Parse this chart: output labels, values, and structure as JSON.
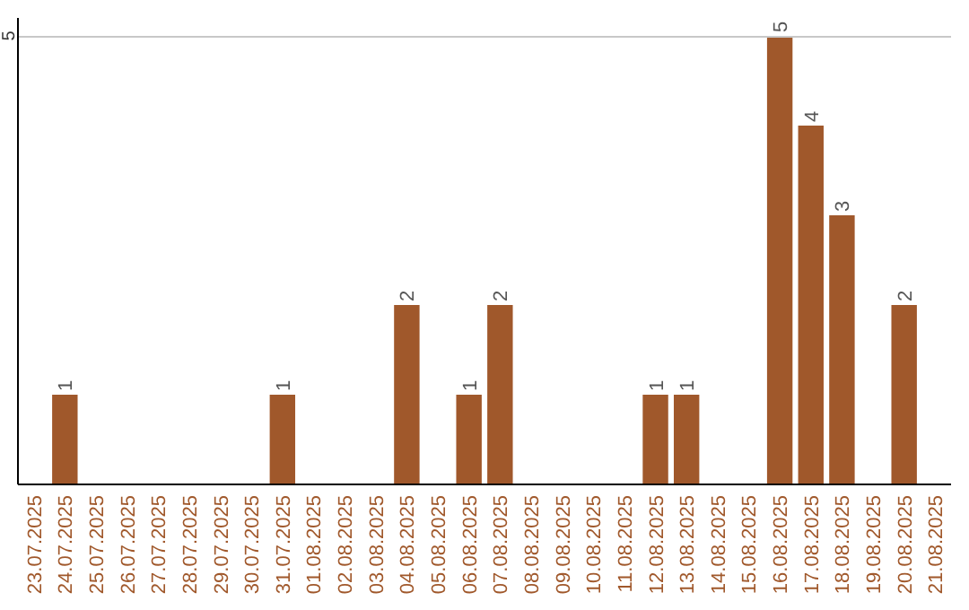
{
  "chart_data": {
    "type": "bar",
    "categories": [
      "23.07.2025",
      "24.07.2025",
      "25.07.2025",
      "26.07.2025",
      "27.07.2025",
      "28.07.2025",
      "29.07.2025",
      "30.07.2025",
      "31.07.2025",
      "01.08.2025",
      "02.08.2025",
      "03.08.2025",
      "04.08.2025",
      "05.08.2025",
      "06.08.2025",
      "07.08.2025",
      "08.08.2025",
      "09.08.2025",
      "10.08.2025",
      "11.08.2025",
      "12.08.2025",
      "13.08.2025",
      "14.08.2025",
      "15.08.2025",
      "16.08.2025",
      "17.08.2025",
      "18.08.2025",
      "19.08.2025",
      "20.08.2025",
      "21.08.2025"
    ],
    "values": [
      0,
      1,
      0,
      0,
      0,
      0,
      0,
      0,
      1,
      0,
      0,
      0,
      2,
      0,
      1,
      2,
      0,
      0,
      0,
      0,
      1,
      1,
      0,
      0,
      5,
      4,
      3,
      0,
      2,
      0
    ],
    "value_labels": [
      null,
      "1",
      null,
      null,
      null,
      null,
      null,
      null,
      "1",
      null,
      null,
      null,
      "2",
      null,
      "1",
      "2",
      null,
      null,
      null,
      null,
      "1",
      "1",
      null,
      null,
      "5",
      "4",
      "3",
      null,
      "2",
      null
    ],
    "color": "#a0582b",
    "ylim": [
      0,
      5.2
    ],
    "yticks": [
      5
    ],
    "grid": "y"
  }
}
